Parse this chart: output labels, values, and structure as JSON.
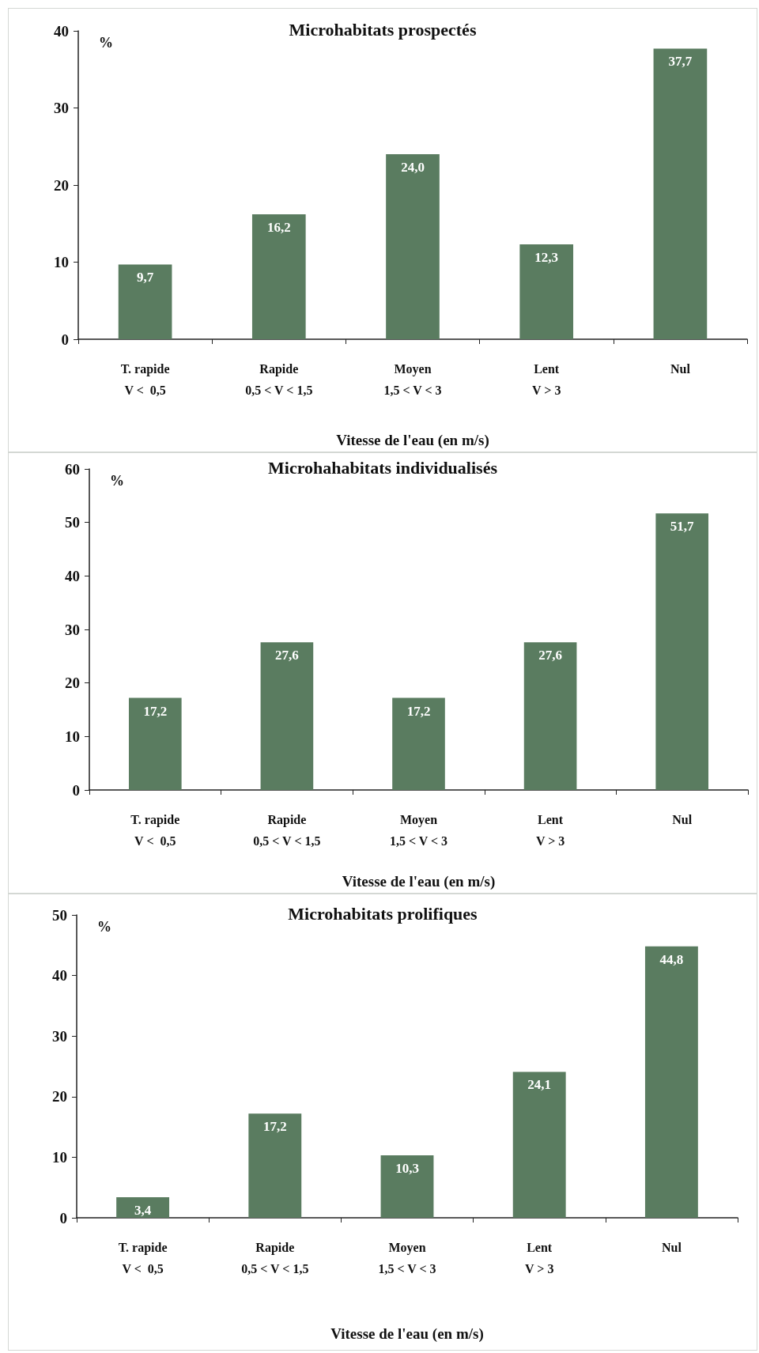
{
  "chart_data": [
    {
      "type": "bar",
      "title": "Microhabitats prospectés",
      "ylabel": "%",
      "xlabel": "Vitesse de l'eau (en m/s)",
      "categories": [
        "T. rapide\nV <  0,5",
        "Rapide\n0,5 < V < 1,5",
        "Moyen\n1,5 < V < 3",
        "Lent\nV > 3",
        "Nul"
      ],
      "values": [
        9.7,
        16.2,
        24.0,
        12.3,
        37.7
      ],
      "value_labels": [
        "9,7",
        "16,2",
        "24,0",
        "12,3",
        "37,7"
      ],
      "color": "#5a7c60",
      "ylim": [
        0,
        40
      ],
      "yticks": [
        0,
        10,
        20,
        30,
        40
      ],
      "grid": false
    },
    {
      "type": "bar",
      "title": "Microhahabitats individualisés",
      "ylabel": "%",
      "xlabel": "Vitesse de l'eau (en m/s)",
      "categories": [
        "T. rapide\nV <  0,5",
        "Rapide\n0,5 < V < 1,5",
        "Moyen\n1,5 < V < 3",
        "Lent\nV > 3",
        "Nul"
      ],
      "values": [
        17.2,
        27.6,
        17.2,
        27.6,
        51.7
      ],
      "value_labels": [
        "17,2",
        "27,6",
        "17,2",
        "27,6",
        "51,7"
      ],
      "color": "#5a7c60",
      "ylim": [
        0,
        60
      ],
      "yticks": [
        0,
        10,
        20,
        30,
        40,
        50,
        60
      ],
      "grid": false
    },
    {
      "type": "bar",
      "title": "Microhabitats prolifiques",
      "ylabel": "%",
      "xlabel": "Vitesse de l'eau (en m/s)",
      "categories": [
        "T. rapide\nV <  0,5",
        "Rapide\n0,5 < V < 1,5",
        "Moyen\n1,5 < V < 3",
        "Lent\nV > 3",
        "Nul"
      ],
      "values": [
        3.4,
        17.2,
        10.3,
        24.1,
        44.8
      ],
      "value_labels": [
        "3,4",
        "17,2",
        "10,3",
        "24,1",
        "44,8"
      ],
      "color": "#5a7c60",
      "ylim": [
        0,
        50
      ],
      "yticks": [
        0,
        10,
        20,
        30,
        40,
        50
      ],
      "grid": false
    }
  ]
}
